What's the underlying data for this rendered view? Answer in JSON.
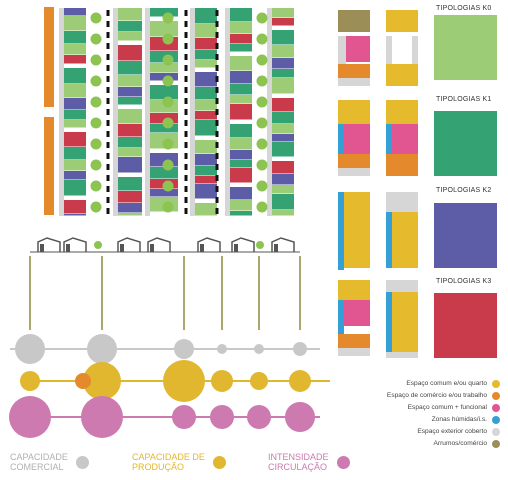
{
  "typologies": [
    {
      "title": "TIPOLOGIAS K0",
      "color": "#9ccd76"
    },
    {
      "title": "TIPOLOGIAS K1",
      "color": "#34a273"
    },
    {
      "title": "TIPOLOGIAS K2",
      "color": "#5d5ca6"
    },
    {
      "title": "TIPOLOGIAS K3",
      "color": "#c93a4b"
    }
  ],
  "legend": [
    {
      "label": "Espaço comum e/ou quarto",
      "color": "#e6ba2d"
    },
    {
      "label": "Espaço de comércio e/ou trabalho",
      "color": "#e48a2c"
    },
    {
      "label": "Espaço comum + funcional",
      "color": "#e15591"
    },
    {
      "label": "Zonas húmidas/i.s.",
      "color": "#34a0d6"
    },
    {
      "label": "Espaço exterior coberto",
      "color": "#d6d6d6"
    },
    {
      "label": "Arrumos/comércio",
      "color": "#9b8e57"
    }
  ],
  "bottom_legend": [
    {
      "label": "CAPACIDADE\nCOMERCIAL",
      "color": "#c8c8c8",
      "text_color": "#b0b0b0"
    },
    {
      "label": "CAPACIDADE DE\nPRODUÇÃO",
      "color": "#e2b730",
      "text_color": "#e2b730"
    },
    {
      "label": "INTENSIDADE\nCIRCULAÇÃO",
      "color": "#cc7ab0",
      "text_color": "#cc7ab0"
    }
  ],
  "colors": {
    "k0": "#9ccd76",
    "k1": "#34a273",
    "k2": "#5d5ca6",
    "k3": "#c93a4b",
    "orange": "#e48a2c",
    "grey": "#d6d6d6",
    "path": "#8e8a3a",
    "house": "#555555"
  }
}
